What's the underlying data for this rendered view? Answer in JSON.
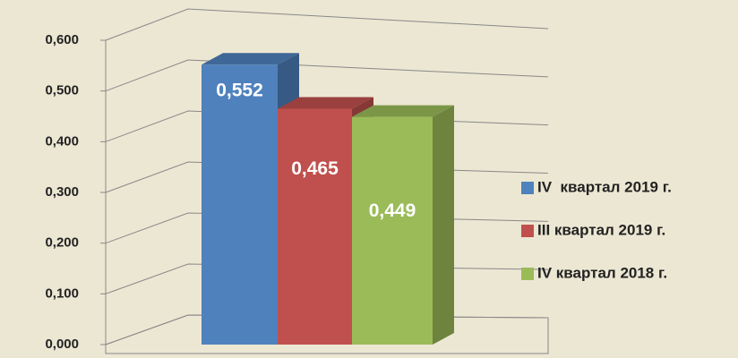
{
  "chart_data": {
    "type": "bar3d",
    "categories": [
      null
    ],
    "series": [
      {
        "name": "IV  квартал 2019 г.",
        "color": "#4f81bd",
        "values": [
          0.552
        ],
        "value_labels": [
          "0,552"
        ]
      },
      {
        "name": "III квартал 2019 г.",
        "color": "#c0504d",
        "values": [
          0.465
        ],
        "value_labels": [
          "0,465"
        ]
      },
      {
        "name": "IV квартал 2018 г.",
        "color": "#9bbb59",
        "values": [
          0.449
        ],
        "value_labels": [
          "0,449"
        ]
      }
    ],
    "ylim": [
      0,
      0.6
    ],
    "yticks": [
      {
        "value": 0,
        "label": "0,000"
      },
      {
        "value": 0.1,
        "label": "0,100"
      },
      {
        "value": 0.2,
        "label": "0,200"
      },
      {
        "value": 0.3,
        "label": "0,300"
      },
      {
        "value": 0.4,
        "label": "0,400"
      },
      {
        "value": 0.5,
        "label": "0,500"
      },
      {
        "value": 0.6,
        "label": "0,600"
      }
    ],
    "grid": true,
    "legend": "right"
  }
}
